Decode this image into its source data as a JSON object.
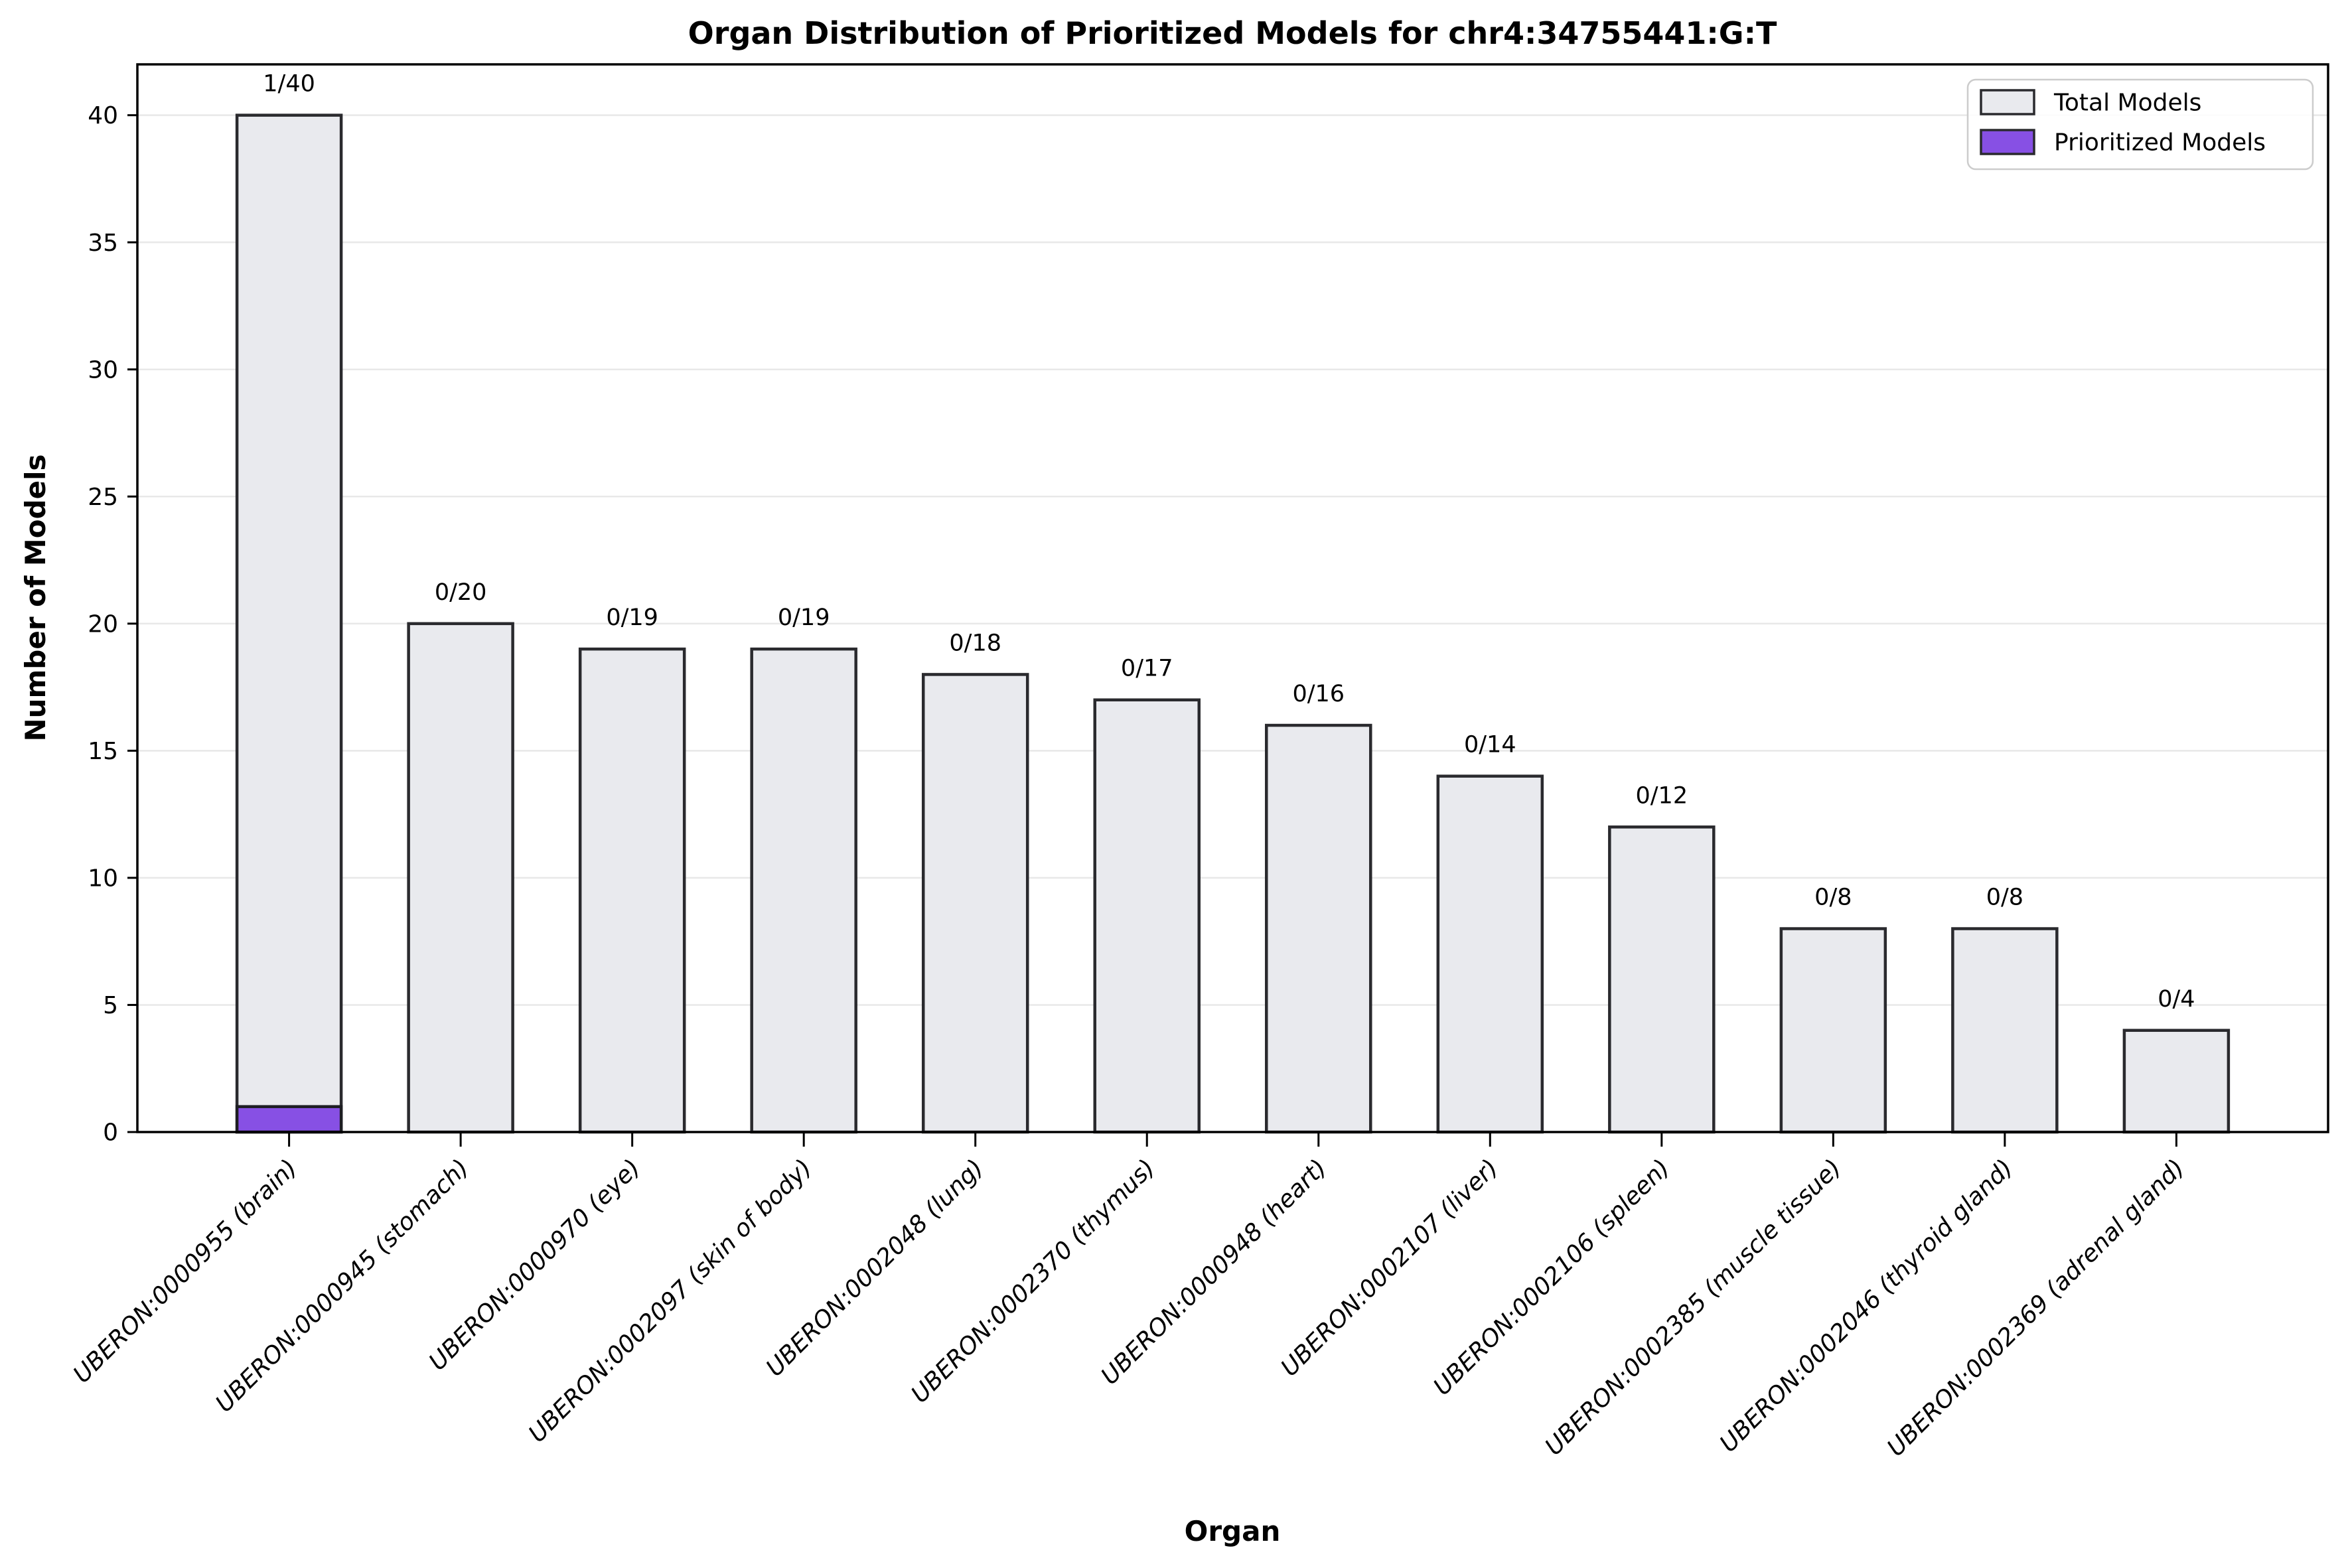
{
  "chart_data": {
    "type": "bar",
    "title": "Organ Distribution of Prioritized Models for chr4:34755441:G:T",
    "xlabel": "Organ",
    "ylabel": "Number of Models",
    "ylim": [
      0,
      42
    ],
    "yticks": [
      0,
      5,
      10,
      15,
      20,
      25,
      30,
      35,
      40
    ],
    "grid": "horizontal",
    "legend_position": "upper right",
    "categories": [
      "UBERON:0000955 (brain)",
      "UBERON:0000945 (stomach)",
      "UBERON:0000970 (eye)",
      "UBERON:0002097 (skin of body)",
      "UBERON:0002048 (lung)",
      "UBERON:0002370 (thymus)",
      "UBERON:0000948 (heart)",
      "UBERON:0002107 (liver)",
      "UBERON:0002106 (spleen)",
      "UBERON:0002385 (muscle tissue)",
      "UBERON:0002046 (thyroid gland)",
      "UBERON:0002369 (adrenal gland)"
    ],
    "series": [
      {
        "name": "Total Models",
        "color": "#e9eaee",
        "values": [
          40,
          20,
          19,
          19,
          18,
          17,
          16,
          14,
          12,
          8,
          8,
          4
        ]
      },
      {
        "name": "Prioritized Models",
        "color": "#8750e4",
        "values": [
          1,
          0,
          0,
          0,
          0,
          0,
          0,
          0,
          0,
          0,
          0,
          0
        ]
      }
    ],
    "bar_labels": [
      "1/40",
      "0/20",
      "0/19",
      "0/19",
      "0/18",
      "0/17",
      "0/16",
      "0/14",
      "0/12",
      "0/8",
      "0/8",
      "0/4"
    ],
    "legend": [
      {
        "label": "Total Models",
        "color": "#e9eaee"
      },
      {
        "label": "Prioritized Models",
        "color": "#8750e4"
      }
    ]
  }
}
